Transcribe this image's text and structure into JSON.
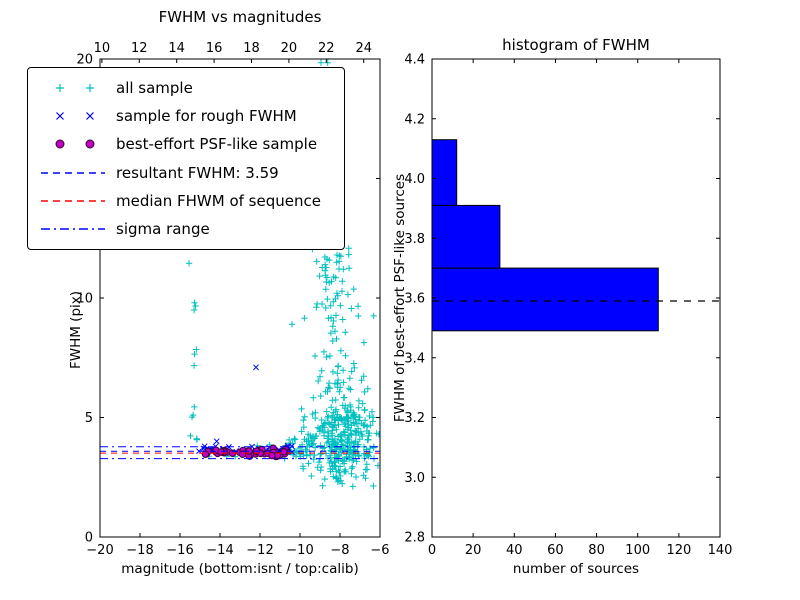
{
  "colors": {
    "cyan": "#00bfbf",
    "blue": "#0000ff",
    "magenta": "#bf00bf",
    "magenta_edge": "#3c003c",
    "red": "#ff0000",
    "black": "#000000",
    "background": "#ffffff"
  },
  "chart_data": [
    {
      "type": "scatter",
      "title": "FWHM vs magnitudes",
      "xlabel": "magnitude (bottom:isnt / top:calib)",
      "ylabel": "FWHM (pix)",
      "xlim": [
        -20,
        -6
      ],
      "ylim": [
        0,
        20
      ],
      "grid": false,
      "x_ticks": [
        -20,
        -18,
        -16,
        -14,
        -12,
        -10,
        -8,
        -6
      ],
      "x_tick_labels": [
        "−20",
        "−18",
        "−16",
        "−14",
        "−12",
        "−10",
        "−8",
        "−6"
      ],
      "y_ticks": [
        0,
        5,
        10,
        15,
        20
      ],
      "y_tick_labels": [
        "0",
        "5",
        "10",
        "15",
        "20"
      ],
      "top_axis": {
        "lim": [
          9.9,
          24.87
        ],
        "ticks": [
          10,
          12,
          14,
          16,
          18,
          20,
          22,
          24
        ],
        "labels": [
          "10",
          "12",
          "14",
          "16",
          "18",
          "20",
          "22",
          "24"
        ]
      },
      "hlines": [
        {
          "name": "resultant-fwhm-line",
          "y": 3.59,
          "color": "#0000ff",
          "style": "dashed"
        },
        {
          "name": "median-fwhm-line",
          "y": 3.51,
          "color": "#ff0000",
          "style": "dashed"
        },
        {
          "name": "sigma-upper-line",
          "y": 3.78,
          "color": "#0000ff",
          "style": "dashdot"
        },
        {
          "name": "sigma-lower-line",
          "y": 3.28,
          "color": "#0000ff",
          "style": "dashdot"
        }
      ],
      "series": [
        {
          "name": "all sample",
          "marker": "plus",
          "color": "#00bfbf",
          "clusters": [
            {
              "n": 330,
              "seed": 2,
              "x": [
                "g",
                -7.9,
                0.85,
                -10.3,
                -6.05
              ],
              "y": [
                "g",
                4.1,
                1.05,
                2.1,
                7.2
              ]
            },
            {
              "n": 85,
              "seed": 3,
              "x": [
                "g",
                -8.3,
                0.55,
                -9.9,
                -6.3
              ],
              "y": [
                "u",
                6.0,
                12.8
              ]
            },
            {
              "n": 30,
              "seed": 4,
              "x": [
                "g",
                -8.9,
                0.4,
                -9.9,
                -7.6
              ],
              "y": [
                "u",
                12.5,
                20.0
              ]
            },
            {
              "n": 40,
              "seed": 5,
              "x": [
                "u",
                -10.9,
                -9.2
              ],
              "y": [
                "g",
                3.6,
                0.4,
                2.6,
                5.0
              ]
            },
            {
              "n": 11,
              "seed": 6,
              "x": [
                "g",
                -15.3,
                0.1,
                -15.5,
                -15.05
              ],
              "y": [
                "u",
                3.8,
                9.9
              ]
            },
            {
              "n": 9,
              "seed": 7,
              "x": [
                "u",
                -15.2,
                -11.0
              ],
              "y": [
                "g",
                3.65,
                0.18,
                3.3,
                4.1
              ]
            }
          ],
          "points": [
            [
              -15.55,
              11.45
            ],
            [
              -10.4,
              8.9
            ]
          ]
        },
        {
          "name": "sample for rough FWHM",
          "marker": "x",
          "color": "#0000ff",
          "clusters": [
            {
              "n": 36,
              "seed": 8,
              "x": [
                "u",
                -15.05,
                -10.4
              ],
              "y": [
                "g",
                3.66,
                0.13,
                3.38,
                4.05
              ]
            }
          ],
          "points": [
            [
              -12.2,
              7.1
            ]
          ]
        },
        {
          "name": "best-effort PSF-like sample",
          "marker": "circle",
          "color": "#bf00bf",
          "edge": "#3c003c",
          "clusters": [
            {
              "n": 50,
              "seed": 9,
              "x": [
                "u",
                -15.1,
                -10.55
              ],
              "y": [
                "g",
                3.53,
                0.08,
                3.33,
                3.72
              ]
            }
          ],
          "points": []
        }
      ]
    },
    {
      "type": "bar",
      "orientation": "horizontal",
      "title": "histogram of FWHM",
      "xlabel": "number of sources",
      "ylabel": "FWHM of best-effort PSF-like sources",
      "xlim": [
        0,
        140
      ],
      "ylim": [
        2.8,
        4.4
      ],
      "grid": false,
      "x_ticks": [
        0,
        20,
        40,
        60,
        80,
        100,
        120,
        140
      ],
      "x_tick_labels": [
        "0",
        "20",
        "40",
        "60",
        "80",
        "100",
        "120",
        "140"
      ],
      "y_ticks": [
        2.8,
        3.0,
        3.2,
        3.4,
        3.6,
        3.8,
        4.0,
        4.2,
        4.4
      ],
      "y_tick_labels": [
        "2.8",
        "3.0",
        "3.2",
        "3.4",
        "3.6",
        "3.8",
        "4.0",
        "4.2",
        "4.4"
      ],
      "bar_color": "#0000ff",
      "bar_edge": "#000000",
      "bins": [
        {
          "lo": 3.49,
          "hi": 3.7,
          "count": 110
        },
        {
          "lo": 3.7,
          "hi": 3.91,
          "count": 33
        },
        {
          "lo": 3.91,
          "hi": 4.13,
          "count": 12
        }
      ],
      "dashed_line": {
        "y": 3.59,
        "color": "#000000",
        "style": "dashed"
      }
    }
  ],
  "legend": {
    "items": [
      {
        "label": "all sample",
        "marker": "plus",
        "color": "#00bfbf"
      },
      {
        "label": "sample for rough FWHM",
        "marker": "x",
        "color": "#0000ff"
      },
      {
        "label": "best-effort PSF-like sample",
        "marker": "circle",
        "color": "#bf00bf",
        "edge": "#3c003c"
      },
      {
        "label": "resultant FWHM: 3.59",
        "marker": "dashed",
        "color": "#0000ff"
      },
      {
        "label": "median FHWM of sequence",
        "marker": "dashed",
        "color": "#ff0000"
      },
      {
        "label": "sigma range",
        "marker": "dashdot",
        "color": "#0000ff"
      }
    ]
  }
}
